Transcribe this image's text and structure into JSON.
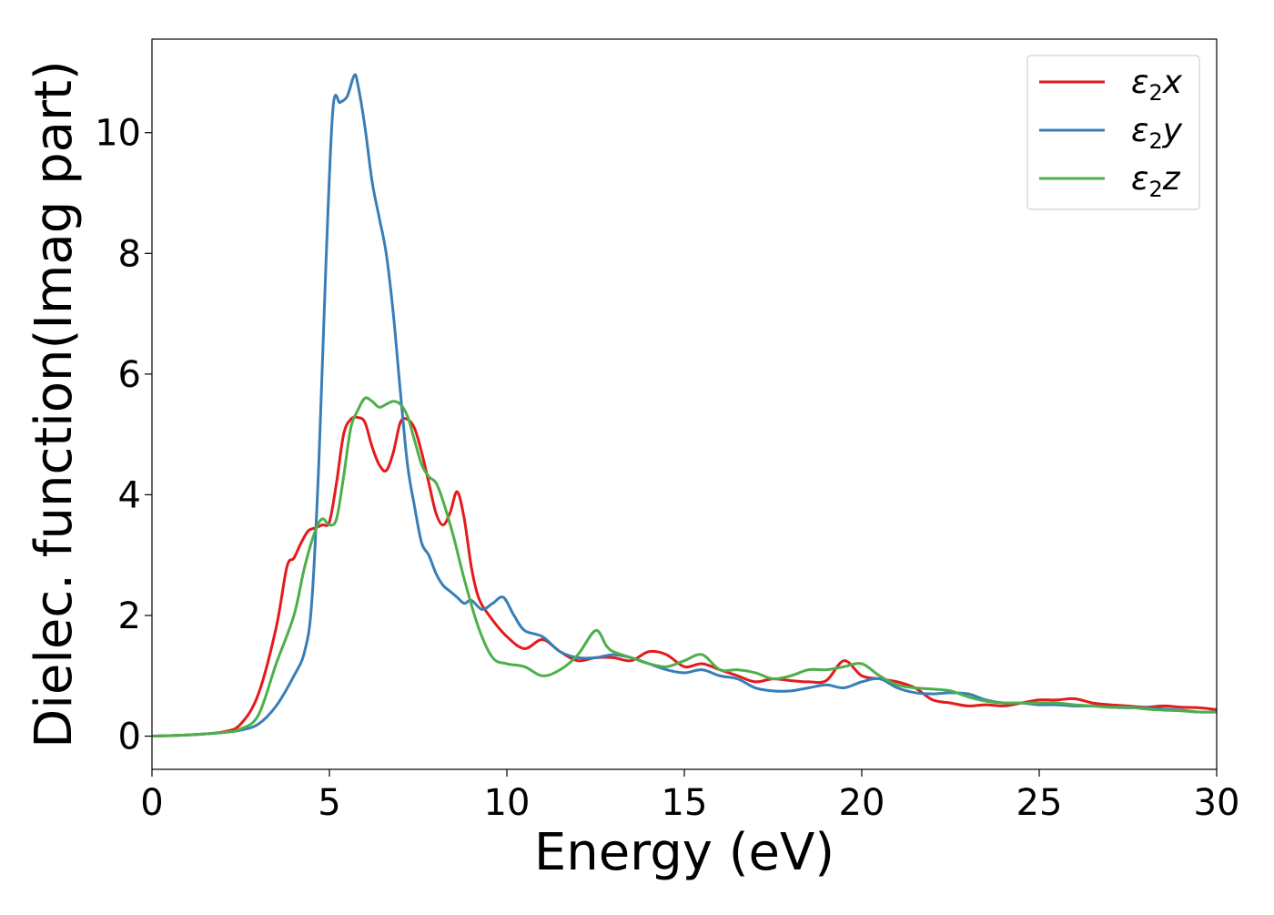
{
  "chart_data": {
    "type": "line",
    "xlabel": "Energy (eV)",
    "ylabel": "Dielec. function(Imag part)",
    "xlim": [
      0,
      30
    ],
    "ylim": [
      -0.55,
      11.55
    ],
    "xticks": [
      0,
      5,
      10,
      15,
      20,
      25,
      30
    ],
    "yticks": [
      0,
      2,
      4,
      6,
      8,
      10
    ],
    "grid": false,
    "legend_position": "top-right",
    "series": [
      {
        "name": "ε2x",
        "legend": {
          "base": "ε",
          "sub": "2",
          "suffix": "x"
        },
        "color": "#e41a1c",
        "x": [
          0,
          1,
          2,
          2.5,
          3,
          3.5,
          3.8,
          4.0,
          4.2,
          4.4,
          4.6,
          4.8,
          5.0,
          5.2,
          5.4,
          5.6,
          5.8,
          6.0,
          6.2,
          6.4,
          6.6,
          6.8,
          7.0,
          7.2,
          7.4,
          7.6,
          7.8,
          8.0,
          8.2,
          8.4,
          8.6,
          8.8,
          9.0,
          9.2,
          9.5,
          10.0,
          10.5,
          11.0,
          11.5,
          12.0,
          12.5,
          13.0,
          13.5,
          14.0,
          14.5,
          15.0,
          15.5,
          16.0,
          16.5,
          17.0,
          17.5,
          18.0,
          18.5,
          19.0,
          19.5,
          20.0,
          20.5,
          21.0,
          21.5,
          22.0,
          22.5,
          23.0,
          23.5,
          24.0,
          24.5,
          25.0,
          25.5,
          26.0,
          26.5,
          27.0,
          27.5,
          28.0,
          28.5,
          29.0,
          29.5,
          30.0
        ],
        "y": [
          0.0,
          0.02,
          0.07,
          0.2,
          0.7,
          1.8,
          2.8,
          2.95,
          3.2,
          3.4,
          3.45,
          3.5,
          3.55,
          4.2,
          5.0,
          5.25,
          5.28,
          5.2,
          4.8,
          4.5,
          4.4,
          4.7,
          5.2,
          5.25,
          5.1,
          4.7,
          4.2,
          3.7,
          3.5,
          3.7,
          4.05,
          3.6,
          2.8,
          2.3,
          2.0,
          1.65,
          1.45,
          1.6,
          1.4,
          1.25,
          1.3,
          1.3,
          1.25,
          1.4,
          1.35,
          1.15,
          1.2,
          1.1,
          1.0,
          0.9,
          0.95,
          0.92,
          0.9,
          0.92,
          1.25,
          1.0,
          0.95,
          0.9,
          0.8,
          0.6,
          0.55,
          0.5,
          0.52,
          0.5,
          0.55,
          0.6,
          0.6,
          0.62,
          0.55,
          0.52,
          0.5,
          0.48,
          0.5,
          0.48,
          0.47,
          0.44
        ]
      },
      {
        "name": "ε2y",
        "legend": {
          "base": "ε",
          "sub": "2",
          "suffix": "y"
        },
        "color": "#377eb8",
        "x": [
          0,
          1,
          2,
          2.5,
          3,
          3.5,
          4.0,
          4.3,
          4.5,
          4.7,
          4.9,
          5.1,
          5.3,
          5.5,
          5.7,
          5.8,
          6.0,
          6.2,
          6.4,
          6.6,
          6.8,
          7.0,
          7.2,
          7.4,
          7.6,
          7.8,
          8.0,
          8.2,
          8.4,
          8.6,
          8.8,
          9.0,
          9.3,
          9.6,
          9.9,
          10.2,
          10.5,
          11.0,
          11.5,
          12.0,
          12.5,
          13.0,
          13.5,
          14.0,
          14.5,
          15.0,
          15.5,
          16.0,
          16.5,
          17.0,
          17.5,
          18.0,
          18.5,
          19.0,
          19.5,
          20.0,
          20.5,
          21.0,
          21.5,
          22.0,
          22.5,
          23.0,
          23.5,
          24.0,
          24.5,
          25.0,
          25.5,
          26.0,
          26.5,
          27.0,
          27.5,
          28.0,
          28.5,
          29.0,
          29.5,
          30.0
        ],
        "y": [
          0.0,
          0.02,
          0.06,
          0.1,
          0.2,
          0.5,
          1.0,
          1.4,
          2.2,
          4.5,
          7.8,
          10.4,
          10.5,
          10.6,
          10.95,
          10.8,
          10.1,
          9.2,
          8.6,
          8.0,
          7.0,
          5.7,
          4.5,
          3.8,
          3.2,
          3.0,
          2.7,
          2.5,
          2.4,
          2.3,
          2.2,
          2.25,
          2.1,
          2.2,
          2.3,
          2.0,
          1.75,
          1.65,
          1.4,
          1.3,
          1.3,
          1.35,
          1.3,
          1.2,
          1.1,
          1.05,
          1.1,
          1.0,
          0.95,
          0.8,
          0.75,
          0.75,
          0.8,
          0.85,
          0.8,
          0.9,
          0.95,
          0.8,
          0.72,
          0.7,
          0.72,
          0.7,
          0.6,
          0.55,
          0.55,
          0.52,
          0.52,
          0.5,
          0.5,
          0.48,
          0.47,
          0.47,
          0.45,
          0.43,
          0.4,
          0.4
        ]
      },
      {
        "name": "ε2z",
        "legend": {
          "base": "ε",
          "sub": "2",
          "suffix": "z"
        },
        "color": "#4daf4a",
        "x": [
          0,
          1,
          2,
          2.5,
          3,
          3.5,
          4.0,
          4.3,
          4.6,
          4.8,
          5.0,
          5.2,
          5.4,
          5.6,
          5.8,
          6.0,
          6.2,
          6.4,
          6.6,
          6.8,
          7.0,
          7.2,
          7.4,
          7.6,
          7.8,
          8.0,
          8.2,
          8.5,
          8.8,
          9.2,
          9.6,
          10.0,
          10.5,
          11.0,
          11.5,
          12.0,
          12.5,
          12.8,
          13.0,
          13.5,
          14.0,
          14.5,
          15.0,
          15.5,
          16.0,
          16.5,
          17.0,
          17.5,
          18.0,
          18.5,
          19.0,
          19.5,
          20.0,
          20.5,
          21.0,
          21.5,
          22.0,
          22.5,
          23.0,
          23.5,
          24.0,
          24.5,
          25.0,
          25.5,
          26.0,
          26.5,
          27.0,
          27.5,
          28.0,
          28.5,
          29.0,
          29.5,
          30.0
        ],
        "y": [
          0.0,
          0.02,
          0.06,
          0.12,
          0.35,
          1.2,
          2.0,
          2.8,
          3.4,
          3.6,
          3.5,
          3.6,
          4.3,
          5.1,
          5.4,
          5.6,
          5.55,
          5.45,
          5.5,
          5.55,
          5.5,
          5.3,
          4.9,
          4.5,
          4.3,
          4.2,
          3.9,
          3.3,
          2.6,
          1.8,
          1.3,
          1.2,
          1.15,
          1.0,
          1.1,
          1.35,
          1.75,
          1.5,
          1.4,
          1.3,
          1.2,
          1.15,
          1.25,
          1.35,
          1.1,
          1.1,
          1.05,
          0.95,
          1.0,
          1.1,
          1.1,
          1.15,
          1.2,
          1.0,
          0.85,
          0.8,
          0.78,
          0.75,
          0.65,
          0.58,
          0.55,
          0.55,
          0.55,
          0.55,
          0.52,
          0.5,
          0.48,
          0.48,
          0.45,
          0.43,
          0.42,
          0.4,
          0.4
        ]
      }
    ]
  }
}
